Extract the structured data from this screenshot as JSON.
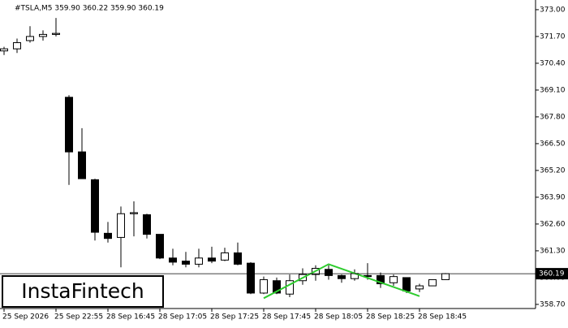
{
  "chart_data": {
    "type": "candlestick",
    "title": "#TSLA,M5  359.90 360.22 359.90 360.19",
    "categories": [
      "25 Sep 2026",
      null,
      null,
      null,
      "25 Sep 22:55",
      null,
      null,
      null,
      "28 Sep 16:45",
      null,
      null,
      null,
      "28 Sep 17:05",
      null,
      null,
      null,
      "28 Sep 17:25",
      null,
      null,
      null,
      "28 Sep 17:45",
      null,
      null,
      null,
      "28 Sep 18:05",
      null,
      null,
      null,
      "28 Sep 18:25",
      null,
      null,
      null,
      "28 Sep 18:45",
      null,
      null
    ],
    "open": [
      371.0,
      371.1,
      371.5,
      371.7,
      371.8,
      368.75,
      366.1,
      364.75,
      362.15,
      361.95,
      363.1,
      363.05,
      362.1,
      360.95,
      360.8,
      360.65,
      360.95,
      360.85,
      361.2,
      360.7,
      359.25,
      359.85,
      359.2,
      359.85,
      360.15,
      360.4,
      360.1,
      359.95,
      360.1,
      360.1,
      359.75,
      360.0,
      359.45,
      359.6,
      359.9
    ],
    "high": [
      371.2,
      371.6,
      372.2,
      372.0,
      372.6,
      368.85,
      367.25,
      364.8,
      362.7,
      363.45,
      363.7,
      363.1,
      362.1,
      361.4,
      361.25,
      361.4,
      361.5,
      361.45,
      361.7,
      360.75,
      360.05,
      360.0,
      360.15,
      360.45,
      360.6,
      360.6,
      360.15,
      360.4,
      360.7,
      360.25,
      360.15,
      360.0,
      359.7,
      359.9,
      360.22
    ],
    "low": [
      370.8,
      370.9,
      371.4,
      371.5,
      371.7,
      364.5,
      364.8,
      361.8,
      361.7,
      360.5,
      362.0,
      361.9,
      360.9,
      360.6,
      360.5,
      360.5,
      360.7,
      360.8,
      360.6,
      359.2,
      359.2,
      359.2,
      359.05,
      359.65,
      359.85,
      359.9,
      359.75,
      359.85,
      359.9,
      359.5,
      359.6,
      359.25,
      359.3,
      359.6,
      359.9
    ],
    "close": [
      371.1,
      371.4,
      371.7,
      371.8,
      371.85,
      366.1,
      364.8,
      362.2,
      361.9,
      363.1,
      363.15,
      362.1,
      360.95,
      360.75,
      360.65,
      360.95,
      360.8,
      361.2,
      360.65,
      359.25,
      359.9,
      359.25,
      359.85,
      360.15,
      360.45,
      360.1,
      359.95,
      360.2,
      360.05,
      359.7,
      360.05,
      359.35,
      359.6,
      359.9,
      360.19
    ],
    "ylim": [
      358.5,
      373.47
    ],
    "yticks": [
      {
        "value": 373,
        "label": "373.00"
      },
      {
        "value": 371.7,
        "label": "371.70"
      },
      {
        "value": 370.4,
        "label": "370.40"
      },
      {
        "value": 369.1,
        "label": "369.10"
      },
      {
        "value": 367.8,
        "label": "367.80"
      },
      {
        "value": 366.5,
        "label": "366.50"
      },
      {
        "value": 365.2,
        "label": "365.20"
      },
      {
        "value": 363.9,
        "label": "363.90"
      },
      {
        "value": 362.6,
        "label": "362.60"
      },
      {
        "value": 361.3,
        "label": "361.30"
      },
      {
        "value": 360,
        "label": "360.00"
      },
      {
        "value": 358.7,
        "label": "358.70"
      }
    ],
    "last_price": {
      "value": 360.19,
      "label": "360.19"
    },
    "pattern": {
      "color": "#2ecc2e",
      "x": [
        20,
        25,
        32
      ],
      "values": [
        359.0,
        360.65,
        359.1
      ]
    },
    "watermark": "InstaFintech"
  }
}
